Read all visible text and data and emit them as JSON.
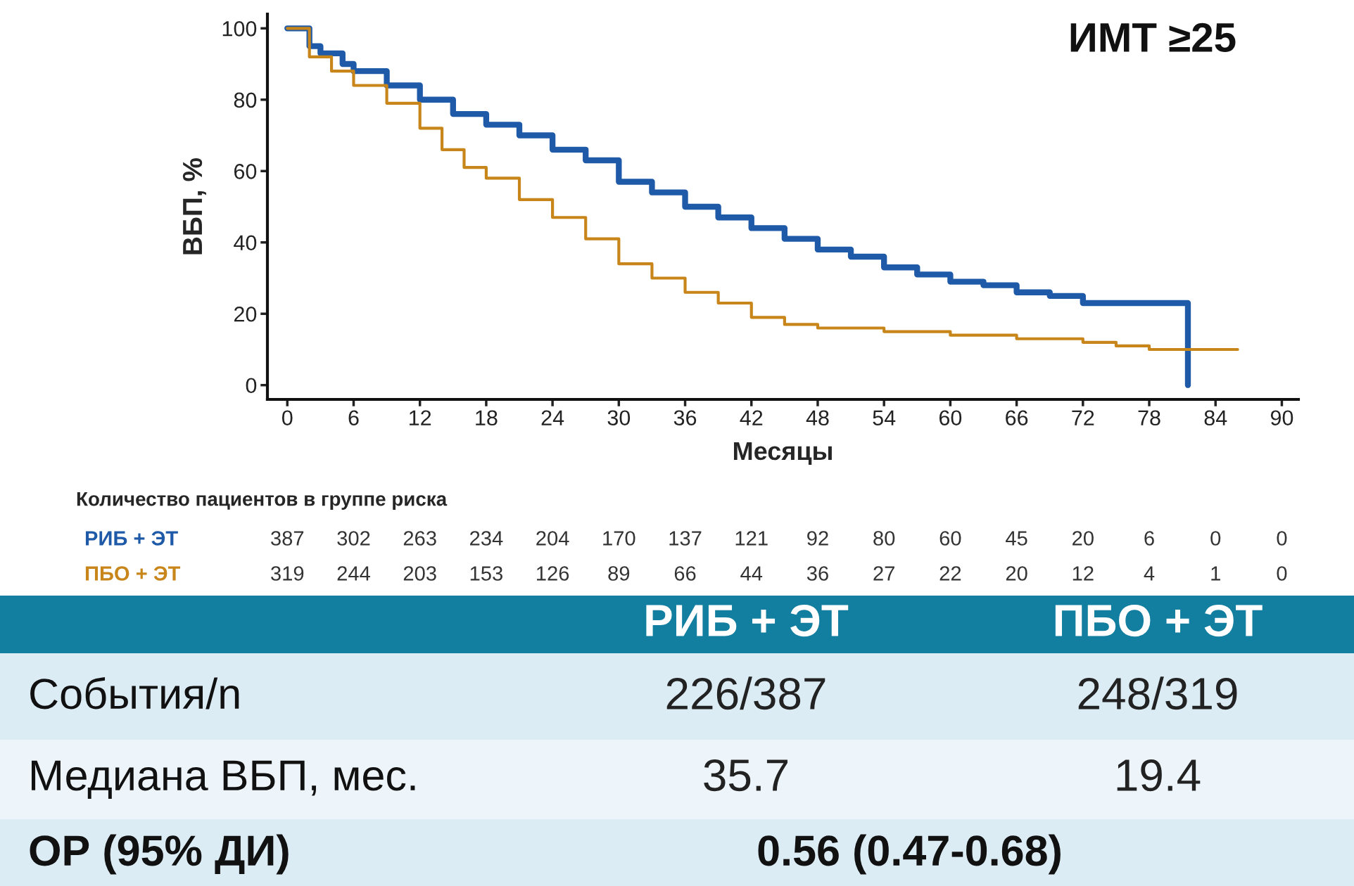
{
  "chart_data": {
    "type": "step",
    "title": "ИМТ ≥25",
    "xlabel": "Месяцы",
    "ylabel": "ВБП, %",
    "xlim": [
      -1.8,
      91.5
    ],
    "ylim": [
      -4,
      104
    ],
    "xticks": [
      0,
      6,
      12,
      18,
      24,
      30,
      36,
      42,
      48,
      54,
      60,
      66,
      72,
      78,
      84,
      90
    ],
    "yticks": [
      0,
      20,
      40,
      60,
      80,
      100
    ],
    "grid": false,
    "series": [
      {
        "name": "РИБ + ЭТ",
        "color": "#1f5aa8",
        "x": [
          0,
          1.5,
          2,
          3,
          5,
          6,
          9,
          12,
          15,
          18,
          21,
          24,
          27,
          30,
          33,
          36,
          39,
          42,
          45,
          48,
          51,
          54,
          57,
          60,
          63,
          66,
          69,
          72,
          75,
          78,
          81.5,
          81.5
        ],
        "values": [
          100,
          100,
          95,
          93,
          90,
          88,
          84,
          80,
          76,
          73,
          70,
          66,
          63,
          57,
          54,
          50,
          47,
          44,
          41,
          38,
          36,
          33,
          31,
          29,
          28,
          26,
          25,
          23,
          23,
          23,
          23,
          0
        ]
      },
      {
        "name": "ПБО + ЭТ",
        "color": "#c8861a",
        "x": [
          0,
          1.5,
          2,
          4,
          6,
          9,
          12,
          14,
          16,
          18,
          21,
          24,
          27,
          30,
          33,
          36,
          39,
          42,
          45,
          48,
          51,
          54,
          57,
          60,
          63,
          66,
          69,
          72,
          75,
          78,
          86
        ],
        "values": [
          100,
          100,
          92,
          88,
          84,
          79,
          72,
          66,
          61,
          58,
          52,
          47,
          41,
          34,
          30,
          26,
          23,
          19,
          17,
          16,
          16,
          15,
          15,
          14,
          14,
          13,
          13,
          12,
          11,
          10,
          10
        ]
      }
    ],
    "annotations": [
      "Количество пациентов в группе риска",
      "387",
      "302",
      "263",
      "234",
      "204",
      "170",
      "137",
      "121",
      "92",
      "80",
      "60",
      "45",
      "20",
      "6",
      "0",
      "0",
      "319",
      "244",
      "203",
      "153",
      "126",
      "89",
      "66",
      "44",
      "36",
      "27",
      "22",
      "20",
      "12",
      "4",
      "1",
      "0",
      "РИБ + ЭТ",
      "ПБО + ЭТ",
      "События/n",
      "226/387",
      "248/319",
      "Медиана ВБП, мес.",
      "35.7",
      "19.4",
      "ОР (95% ДИ)",
      "0.56 (0.47-0.68)"
    ]
  }
}
